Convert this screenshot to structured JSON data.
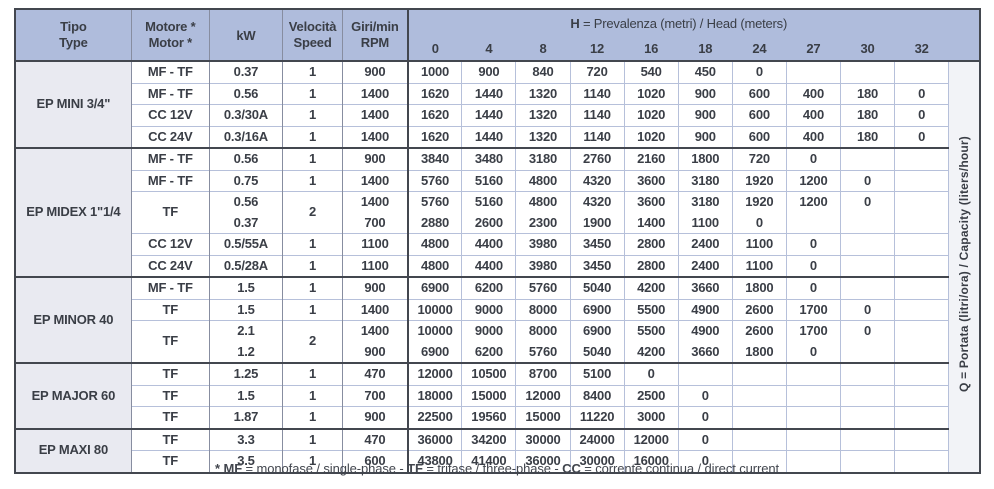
{
  "colors": {
    "header_bg": "#afbcdc",
    "tipo_bg": "#e9eaf1",
    "grid_light": "#b6c0da",
    "grid_gray": "#878da0",
    "line_dark": "#43474f",
    "q_col_bg": "#f2f3f7",
    "text_color": "#3a3e46"
  },
  "header": {
    "tipo": [
      "Tipo",
      "Type"
    ],
    "motore": [
      "Motore *",
      "Motor *"
    ],
    "kw": "kW",
    "velocita": [
      "Velocità",
      "Speed"
    ],
    "giri": [
      "Giri/min",
      "RPM"
    ],
    "head_bold": "H",
    "head_rest": " = Prevalenza (metri) / Head (meters)",
    "head_values": [
      "0",
      "4",
      "8",
      "12",
      "16",
      "18",
      "24",
      "27",
      "30",
      "32"
    ]
  },
  "q_label": {
    "bold": "Q",
    "rest": " = Portata (litri/ora) / Capacity (liters/hour)"
  },
  "groups": [
    {
      "tipo": "EP MINI 3/4\"",
      "rows": [
        {
          "motore": "MF - TF",
          "kw": [
            "0.37"
          ],
          "speed": "1",
          "rpm": [
            "900"
          ],
          "data": [
            [
              "1000",
              "900",
              "840",
              "720",
              "540",
              "450",
              "0",
              "",
              "",
              ""
            ]
          ]
        },
        {
          "motore": "MF - TF",
          "kw": [
            "0.56"
          ],
          "speed": "1",
          "rpm": [
            "1400"
          ],
          "data": [
            [
              "1620",
              "1440",
              "1320",
              "1140",
              "1020",
              "900",
              "600",
              "400",
              "180",
              "0"
            ]
          ]
        },
        {
          "motore": "CC 12V",
          "kw": [
            "0.3/30A"
          ],
          "speed": "1",
          "rpm": [
            "1400"
          ],
          "data": [
            [
              "1620",
              "1440",
              "1320",
              "1140",
              "1020",
              "900",
              "600",
              "400",
              "180",
              "0"
            ]
          ]
        },
        {
          "motore": "CC 24V",
          "kw": [
            "0.3/16A"
          ],
          "speed": "1",
          "rpm": [
            "1400"
          ],
          "data": [
            [
              "1620",
              "1440",
              "1320",
              "1140",
              "1020",
              "900",
              "600",
              "400",
              "180",
              "0"
            ]
          ]
        }
      ]
    },
    {
      "tipo": "EP MIDEX 1\"1/4",
      "rows": [
        {
          "motore": "MF - TF",
          "kw": [
            "0.56"
          ],
          "speed": "1",
          "rpm": [
            "900"
          ],
          "data": [
            [
              "3840",
              "3480",
              "3180",
              "2760",
              "2160",
              "1800",
              "720",
              "0",
              "",
              ""
            ]
          ]
        },
        {
          "motore": "MF - TF",
          "kw": [
            "0.75"
          ],
          "speed": "1",
          "rpm": [
            "1400"
          ],
          "data": [
            [
              "5760",
              "5160",
              "4800",
              "4320",
              "3600",
              "3180",
              "1920",
              "1200",
              "0",
              ""
            ]
          ]
        },
        {
          "motore": "TF",
          "kw": [
            "0.56",
            "0.37"
          ],
          "speed": "2",
          "rpm": [
            "1400",
            "700"
          ],
          "data": [
            [
              "5760",
              "5160",
              "4800",
              "4320",
              "3600",
              "3180",
              "1920",
              "1200",
              "0",
              ""
            ],
            [
              "2880",
              "2600",
              "2300",
              "1900",
              "1400",
              "1100",
              "0",
              "",
              "",
              ""
            ]
          ]
        },
        {
          "motore": "CC 12V",
          "kw": [
            "0.5/55A"
          ],
          "speed": "1",
          "rpm": [
            "1100"
          ],
          "data": [
            [
              "4800",
              "4400",
              "3980",
              "3450",
              "2800",
              "2400",
              "1100",
              "0",
              "",
              ""
            ]
          ]
        },
        {
          "motore": "CC 24V",
          "kw": [
            "0.5/28A"
          ],
          "speed": "1",
          "rpm": [
            "1100"
          ],
          "data": [
            [
              "4800",
              "4400",
              "3980",
              "3450",
              "2800",
              "2400",
              "1100",
              "0",
              "",
              ""
            ]
          ]
        }
      ]
    },
    {
      "tipo": "EP MINOR 40",
      "rows": [
        {
          "motore": "MF - TF",
          "kw": [
            "1.5"
          ],
          "speed": "1",
          "rpm": [
            "900"
          ],
          "data": [
            [
              "6900",
              "6200",
              "5760",
              "5040",
              "4200",
              "3660",
              "1800",
              "0",
              "",
              ""
            ]
          ]
        },
        {
          "motore": "TF",
          "kw": [
            "1.5"
          ],
          "speed": "1",
          "rpm": [
            "1400"
          ],
          "data": [
            [
              "10000",
              "9000",
              "8000",
              "6900",
              "5500",
              "4900",
              "2600",
              "1700",
              "0",
              ""
            ]
          ]
        },
        {
          "motore": "TF",
          "kw": [
            "2.1",
            "1.2"
          ],
          "speed": "2",
          "rpm": [
            "1400",
            "900"
          ],
          "data": [
            [
              "10000",
              "9000",
              "8000",
              "6900",
              "5500",
              "4900",
              "2600",
              "1700",
              "0",
              ""
            ],
            [
              "6900",
              "6200",
              "5760",
              "5040",
              "4200",
              "3660",
              "1800",
              "0",
              "",
              ""
            ]
          ]
        }
      ]
    },
    {
      "tipo": "EP MAJOR 60",
      "rows": [
        {
          "motore": "TF",
          "kw": [
            "1.25"
          ],
          "speed": "1",
          "rpm": [
            "470"
          ],
          "data": [
            [
              "12000",
              "10500",
              "8700",
              "5100",
              "0",
              "",
              "",
              "",
              "",
              ""
            ]
          ]
        },
        {
          "motore": "TF",
          "kw": [
            "1.5"
          ],
          "speed": "1",
          "rpm": [
            "700"
          ],
          "data": [
            [
              "18000",
              "15000",
              "12000",
              "8400",
              "2500",
              "0",
              "",
              "",
              "",
              ""
            ]
          ]
        },
        {
          "motore": "TF",
          "kw": [
            "1.87"
          ],
          "speed": "1",
          "rpm": [
            "900"
          ],
          "data": [
            [
              "22500",
              "19560",
              "15000",
              "11220",
              "3000",
              "0",
              "",
              "",
              "",
              ""
            ]
          ]
        }
      ]
    },
    {
      "tipo": "EP MAXI 80",
      "rows": [
        {
          "motore": "TF",
          "kw": [
            "3.3"
          ],
          "speed": "1",
          "rpm": [
            "470"
          ],
          "data": [
            [
              "36000",
              "34200",
              "30000",
              "24000",
              "12000",
              "0",
              "",
              "",
              "",
              ""
            ]
          ]
        },
        {
          "motore": "TF",
          "kw": [
            "3.5"
          ],
          "speed": "1",
          "rpm": [
            "600"
          ],
          "data": [
            [
              "43800",
              "41400",
              "36000",
              "30000",
              "16000",
              "0",
              "",
              "",
              "",
              ""
            ]
          ]
        }
      ]
    }
  ],
  "footnote": {
    "segments": [
      {
        "text": "* MF",
        "bold": true
      },
      {
        "text": " = monofase / single-phase - ",
        "bold": false
      },
      {
        "text": "TF",
        "bold": true
      },
      {
        "text": " = trifase / three-phase - ",
        "bold": false
      },
      {
        "text": "CC",
        "bold": true
      },
      {
        "text": " = corrente continua / direct current",
        "bold": false
      }
    ]
  }
}
